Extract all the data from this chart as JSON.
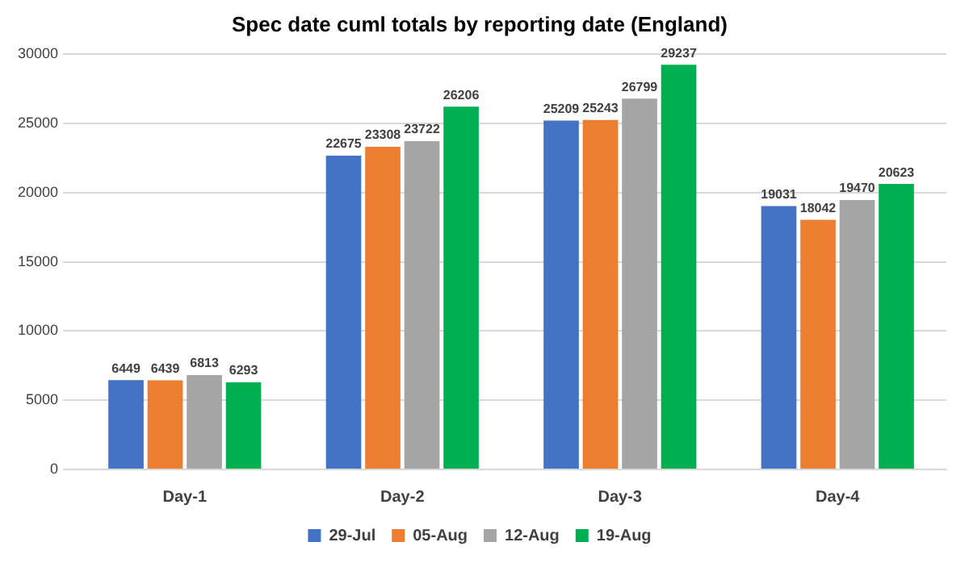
{
  "chart_data": {
    "type": "bar",
    "title": "Spec date cuml totals by reporting date (England)",
    "categories": [
      "Day-1",
      "Day-2",
      "Day-3",
      "Day-4"
    ],
    "series": [
      {
        "name": "29-Jul",
        "color": "#4472c4",
        "values": [
          6449,
          22675,
          25209,
          19031
        ]
      },
      {
        "name": "05-Aug",
        "color": "#ed7d31",
        "values": [
          6439,
          23308,
          25243,
          18042
        ]
      },
      {
        "name": "12-Aug",
        "color": "#a5a5a5",
        "values": [
          6813,
          23722,
          26799,
          19470
        ]
      },
      {
        "name": "19-Aug",
        "color": "#00b050",
        "values": [
          6293,
          26206,
          29237,
          20623
        ]
      }
    ],
    "ylim": [
      0,
      30000
    ],
    "yticks": [
      0,
      5000,
      10000,
      15000,
      20000,
      25000,
      30000
    ],
    "grid": "y",
    "legend": "bottom",
    "data_labels": true
  }
}
